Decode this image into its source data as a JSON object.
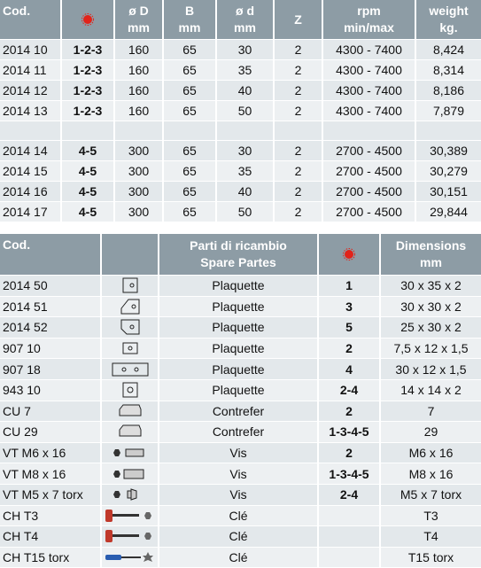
{
  "table1": {
    "header": [
      [
        "Cod."
      ],
      [
        "ø D",
        "mm"
      ],
      [
        "B",
        "mm"
      ],
      [
        "ø d",
        "mm"
      ],
      [
        "Z"
      ],
      [
        "rpm",
        "min/max"
      ],
      [
        "weight",
        "kg."
      ]
    ],
    "rows": [
      [
        "2014 10",
        "1-2-3",
        "160",
        "65",
        "30",
        "2",
        "4300 - 7400",
        "8,424"
      ],
      [
        "2014 11",
        "1-2-3",
        "160",
        "65",
        "35",
        "2",
        "4300 - 7400",
        "8,314"
      ],
      [
        "2014 12",
        "1-2-3",
        "160",
        "65",
        "40",
        "2",
        "4300 - 7400",
        "8,186"
      ],
      [
        "2014 13",
        "1-2-3",
        "160",
        "65",
        "50",
        "2",
        "4300 - 7400",
        "7,879"
      ],
      [
        "2014 14",
        "4-5",
        "300",
        "65",
        "30",
        "2",
        "2700 - 4500",
        "30,389"
      ],
      [
        "2014 15",
        "4-5",
        "300",
        "65",
        "35",
        "2",
        "2700 - 4500",
        "30,279"
      ],
      [
        "2014 16",
        "4-5",
        "300",
        "65",
        "40",
        "2",
        "2700 - 4500",
        "30,151"
      ],
      [
        "2014 17",
        "4-5",
        "300",
        "65",
        "50",
        "2",
        "2700 - 4500",
        "29,844"
      ]
    ]
  },
  "table2": {
    "header": [
      [
        "Cod."
      ],
      [
        "Parti di ricambio",
        "Spare Partes"
      ],
      [
        "Dimensions",
        "mm"
      ]
    ],
    "rows": [
      [
        "2014 50",
        "Plaquette",
        "1",
        "30 x 35 x 2"
      ],
      [
        "2014 51",
        "Plaquette",
        "3",
        "30 x 30 x 2"
      ],
      [
        "2014 52",
        "Plaquette",
        "5",
        "25 x 30 x 2"
      ],
      [
        "907 10",
        "Plaquette",
        "2",
        "7,5 x 12 x 1,5"
      ],
      [
        "907 18",
        "Plaquette",
        "4",
        "30 x 12 x 1,5"
      ],
      [
        "943 10",
        "Plaquette",
        "2-4",
        "14 x 14 x 2"
      ],
      [
        "CU 7",
        "Contrefer",
        "2",
        "7"
      ],
      [
        "CU 29",
        "Contrefer",
        "1-3-4-5",
        "29"
      ],
      [
        "VT M6 x 16",
        "Vis",
        "2",
        "M6 x 16"
      ],
      [
        "VT M8 x 16",
        "Vis",
        "1-3-4-5",
        "M8 x 16"
      ],
      [
        "VT M5 x 7 torx",
        "Vis",
        "2-4",
        "M5 x 7 torx"
      ],
      [
        "CH T3",
        "Clé",
        "",
        "T3"
      ],
      [
        "CH T4",
        "Clé",
        "",
        "T4"
      ],
      [
        "CH T15 torx",
        "Clé",
        "",
        "T15 torx"
      ]
    ]
  }
}
